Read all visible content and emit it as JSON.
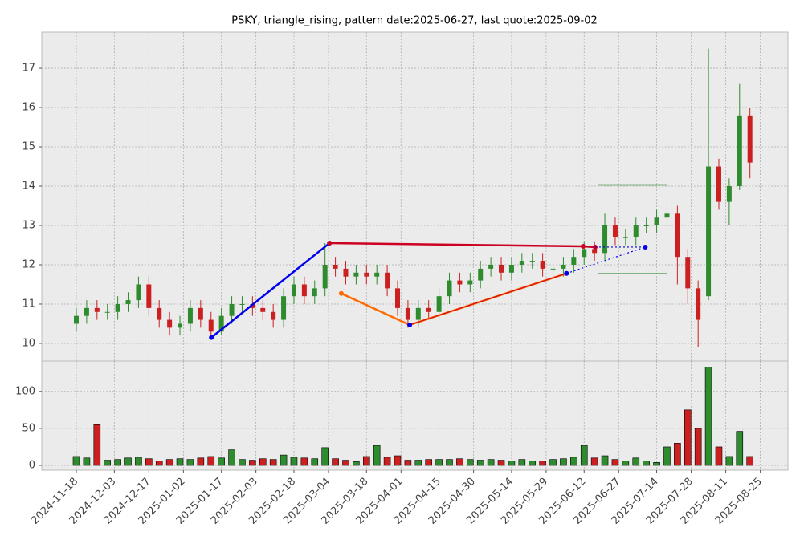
{
  "chart_data": [
    {
      "type": "candlestick",
      "title": "PSKY, triangle_rising, pattern date:2025-06-27, last quote:2025-09-02",
      "up_color": "#2e8b2e",
      "down_color": "#cc1f1f",
      "grid": true,
      "x": [
        0,
        3,
        6,
        9,
        12,
        15,
        18,
        21,
        24,
        27,
        30,
        33,
        36,
        39,
        42,
        45,
        48,
        51,
        54,
        57,
        60,
        63,
        66,
        69,
        72,
        75,
        78,
        81,
        84,
        87,
        90,
        93,
        96,
        99,
        102,
        105,
        108,
        111,
        114,
        117,
        120,
        123,
        126,
        129,
        132,
        135,
        138,
        141,
        144,
        147,
        150,
        153,
        156,
        159,
        162,
        165,
        168,
        171,
        174,
        177,
        180,
        183,
        186,
        189,
        192,
        195
      ],
      "open": [
        10.5,
        10.7,
        10.9,
        10.8,
        10.8,
        11.0,
        11.1,
        11.5,
        10.9,
        10.6,
        10.4,
        10.5,
        10.9,
        10.6,
        10.3,
        10.7,
        11.0,
        11.0,
        10.9,
        10.8,
        10.6,
        11.2,
        11.5,
        11.2,
        11.4,
        12.0,
        11.9,
        11.7,
        11.8,
        11.7,
        11.8,
        11.4,
        10.9,
        10.6,
        10.9,
        10.8,
        11.2,
        11.6,
        11.5,
        11.6,
        11.9,
        12.0,
        11.8,
        12.0,
        12.1,
        12.1,
        11.9,
        11.9,
        12.0,
        12.2,
        12.4,
        12.3,
        13.0,
        12.7,
        12.7,
        13.0,
        13.0,
        13.2,
        13.3,
        12.2,
        11.4,
        11.2,
        14.5,
        13.6,
        14.0,
        15.8
      ],
      "high": [
        10.9,
        11.1,
        11.1,
        11.0,
        11.2,
        11.3,
        11.7,
        11.7,
        11.1,
        10.8,
        10.7,
        11.1,
        11.1,
        10.8,
        10.9,
        11.2,
        11.2,
        11.2,
        11.1,
        11.0,
        11.4,
        11.7,
        11.7,
        11.6,
        12.55,
        12.2,
        12.1,
        12.0,
        12.0,
        12.0,
        12.0,
        11.6,
        11.1,
        11.1,
        11.1,
        11.4,
        11.8,
        11.8,
        11.8,
        12.1,
        12.2,
        12.2,
        12.2,
        12.3,
        12.3,
        12.3,
        12.1,
        12.2,
        12.4,
        12.6,
        12.6,
        13.3,
        13.2,
        12.9,
        13.2,
        13.2,
        13.4,
        13.6,
        13.5,
        12.4,
        11.6,
        17.5,
        14.7,
        14.2,
        16.6,
        16.0
      ],
      "low": [
        10.3,
        10.5,
        10.6,
        10.6,
        10.6,
        10.8,
        10.9,
        10.7,
        10.4,
        10.2,
        10.2,
        10.3,
        10.4,
        10.15,
        10.2,
        10.5,
        10.8,
        10.7,
        10.6,
        10.4,
        10.4,
        11.0,
        11.0,
        11.0,
        11.2,
        11.7,
        11.5,
        11.5,
        11.5,
        11.5,
        11.2,
        10.7,
        10.4,
        10.4,
        10.6,
        10.6,
        11.0,
        11.3,
        11.3,
        11.4,
        11.7,
        11.6,
        11.6,
        11.8,
        11.9,
        11.7,
        11.7,
        11.7,
        11.8,
        12.0,
        12.1,
        12.1,
        12.5,
        12.5,
        12.5,
        12.8,
        12.8,
        13.0,
        11.5,
        11.0,
        9.9,
        11.1,
        13.4,
        13.0,
        13.9,
        14.2
      ],
      "close": [
        10.7,
        10.9,
        10.8,
        10.8,
        11.0,
        11.1,
        11.5,
        10.9,
        10.6,
        10.4,
        10.5,
        10.9,
        10.6,
        10.3,
        10.7,
        11.0,
        11.0,
        10.9,
        10.8,
        10.6,
        11.2,
        11.5,
        11.2,
        11.4,
        12.0,
        11.9,
        11.7,
        11.8,
        11.7,
        11.8,
        11.4,
        10.9,
        10.6,
        10.9,
        10.8,
        11.2,
        11.6,
        11.5,
        11.6,
        11.9,
        12.0,
        11.8,
        12.0,
        12.1,
        12.1,
        11.9,
        11.9,
        12.0,
        12.2,
        12.4,
        12.3,
        13.0,
        12.7,
        12.7,
        13.0,
        13.0,
        13.2,
        13.3,
        12.2,
        11.4,
        10.6,
        14.5,
        13.6,
        14.0,
        15.8,
        14.6
      ],
      "xlim": [
        -10,
        206
      ],
      "ylim": [
        9.55,
        17.92
      ],
      "yticks": [
        10,
        11,
        12,
        13,
        14,
        15,
        16,
        17
      ],
      "overlays": [
        {
          "x": [
            39.1,
            73.3
          ],
          "y": [
            10.15,
            12.55
          ],
          "color": "#0000ee",
          "width": 2.5,
          "dash": "solid",
          "marker": true
        },
        {
          "x": [
            73.3,
            146.7,
            150.2
          ],
          "y": [
            12.55,
            12.47,
            12.45
          ],
          "color": "#cc0022",
          "width": 2.5,
          "dash": "solid",
          "marker": true
        },
        {
          "x": [
            76.7,
            96.5,
            141.9
          ],
          "y": [
            11.27,
            10.47,
            11.78
          ],
          "color": "#ff6a00",
          "width": 2.5,
          "dash": "solid",
          "marker": true
        },
        {
          "x": [
            96.5,
            141.9
          ],
          "y": [
            10.47,
            11.78
          ],
          "color": "#cc0022",
          "width": 1,
          "dash": "solid",
          "marker": false
        },
        {
          "x": [
            96.5
          ],
          "y": [
            10.47
          ],
          "color": "#0000ee",
          "width": 1,
          "dash": "solid",
          "marker": true
        },
        {
          "x": [
            141.9,
            164.7
          ],
          "y": [
            11.78,
            12.45
          ],
          "color": "#0000ee",
          "width": 1.2,
          "dash": "dotted",
          "marker": true
        },
        {
          "x": [
            150.2,
            164.7
          ],
          "y": [
            12.45,
            12.45
          ],
          "color": "#0000ee",
          "width": 1.2,
          "dash": "dotted",
          "marker": false
        },
        {
          "x": [
            151,
            171
          ],
          "y": [
            14.03,
            14.03
          ],
          "color": "#1a7f1a",
          "width": 1.5,
          "dash": "solid",
          "marker": false
        },
        {
          "x": [
            151,
            171
          ],
          "y": [
            11.77,
            11.77
          ],
          "color": "#1a7f1a",
          "width": 1.5,
          "dash": "solid",
          "marker": false
        }
      ]
    },
    {
      "type": "volume",
      "up_color": "#2e8b2e",
      "down_color": "#cc1f1f",
      "grid": true,
      "x": [
        0,
        3,
        6,
        9,
        12,
        15,
        18,
        21,
        24,
        27,
        30,
        33,
        36,
        39,
        42,
        45,
        48,
        51,
        54,
        57,
        60,
        63,
        66,
        69,
        72,
        75,
        78,
        81,
        84,
        87,
        90,
        93,
        96,
        99,
        102,
        105,
        108,
        111,
        114,
        117,
        120,
        123,
        126,
        129,
        132,
        135,
        138,
        141,
        144,
        147,
        150,
        153,
        156,
        159,
        162,
        165,
        168,
        171,
        174,
        177,
        180,
        183,
        186,
        189,
        192,
        195
      ],
      "values": [
        12,
        10,
        55,
        7,
        8,
        10,
        11,
        9,
        6,
        8,
        9,
        8,
        10,
        12,
        10,
        21,
        8,
        7,
        9,
        8,
        14,
        11,
        10,
        9,
        24,
        9,
        7,
        5,
        12,
        27,
        11,
        13,
        7,
        7,
        8,
        8,
        8,
        9,
        8,
        7,
        8,
        7,
        6,
        8,
        6,
        6,
        8,
        9,
        11,
        27,
        10,
        13,
        8,
        6,
        10,
        6,
        4,
        25,
        30,
        75,
        50,
        133,
        25,
        12,
        46,
        12
      ],
      "xlim": [
        -10,
        206
      ],
      "ylim": [
        -6.5,
        141
      ],
      "yticks": [
        0,
        50,
        100
      ],
      "xticks": [
        {
          "value": 0,
          "label": "2024-11-18"
        },
        {
          "value": 11,
          "label": "2024-12-03"
        },
        {
          "value": 21,
          "label": "2024-12-17"
        },
        {
          "value": 31,
          "label": "2025-01-02"
        },
        {
          "value": 42,
          "label": "2025-01-17"
        },
        {
          "value": 52,
          "label": "2025-02-03"
        },
        {
          "value": 63,
          "label": "2025-02-18"
        },
        {
          "value": 73,
          "label": "2025-03-04"
        },
        {
          "value": 84,
          "label": "2025-03-18"
        },
        {
          "value": 94,
          "label": "2025-04-01"
        },
        {
          "value": 105,
          "label": "2025-04-15"
        },
        {
          "value": 115,
          "label": "2025-04-30"
        },
        {
          "value": 126,
          "label": "2025-05-14"
        },
        {
          "value": 136,
          "label": "2025-05-29"
        },
        {
          "value": 147,
          "label": "2025-06-12"
        },
        {
          "value": 157,
          "label": "2025-06-27"
        },
        {
          "value": 168,
          "label": "2025-07-14"
        },
        {
          "value": 178,
          "label": "2025-07-28"
        },
        {
          "value": 188,
          "label": "2025-08-11"
        },
        {
          "value": 198,
          "label": "2025-08-25"
        }
      ]
    }
  ]
}
